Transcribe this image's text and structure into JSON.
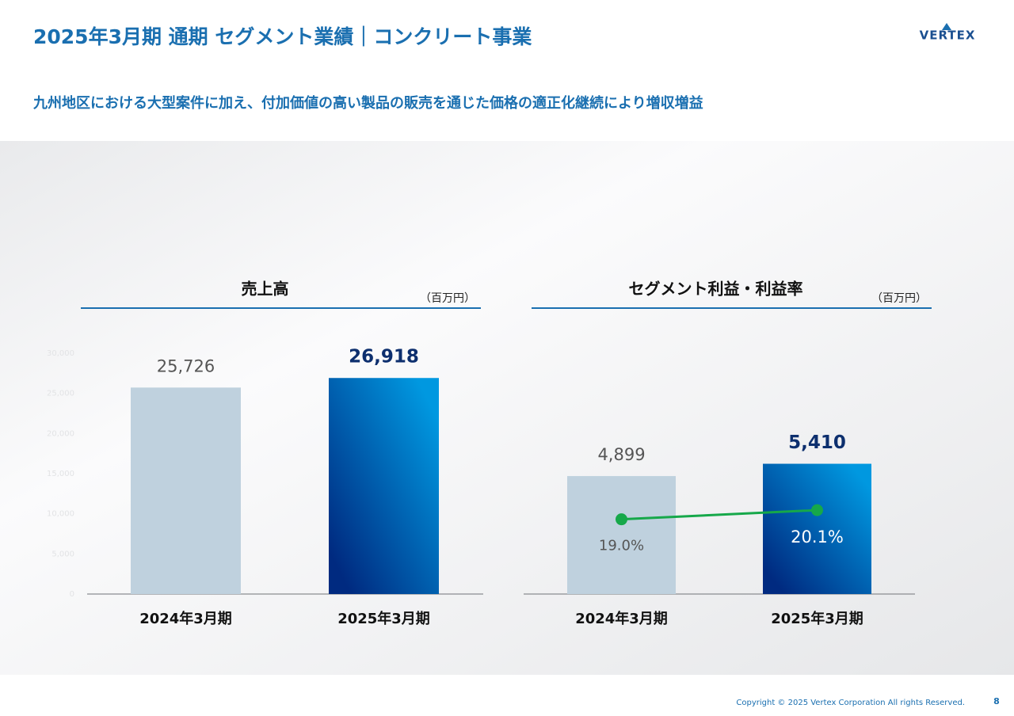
{
  "header": {
    "title": "2025年3月期 通期 セグメント業績｜コンクリート事業",
    "subtitle": "九州地区における大型案件に加え、付加価値の高い製品の販売を通じた価格の適正化継続により増収増益",
    "logo": "VERTEX"
  },
  "chart_data": [
    {
      "type": "bar",
      "title": "売上高",
      "unit": "（百万円）",
      "categories": [
        "2024年3月期",
        "2025年3月期"
      ],
      "series": [
        {
          "colors": [
            "#bfd1de",
            "#0098e0"
          ],
          "values": [
            25726,
            26918
          ],
          "value_labels": [
            "25,726",
            "26,918"
          ]
        }
      ],
      "ylim": [
        0,
        30000
      ],
      "yticks": [
        0,
        {
          "value": 5000,
          "label": "5,000"
        },
        {
          "value": 10000,
          "label": "10,000"
        },
        {
          "value": 15000,
          "label": "15,000"
        },
        {
          "value": 20000,
          "label": "20,000"
        },
        {
          "value": 25000,
          "label": "25,000"
        },
        {
          "value": 30000,
          "label": "30,000"
        }
      ]
    },
    {
      "type": "bar",
      "title": "セグメント利益・利益率",
      "unit": "（百万円）",
      "categories": [
        "2024年3月期",
        "2025年3月期"
      ],
      "series": [
        {
          "colors": [
            "#bfd1de",
            "#0098e0"
          ],
          "values": [
            4899,
            5410
          ],
          "value_labels": [
            "4,899",
            "5,410"
          ]
        },
        {
          "type": "line",
          "axis": "y2",
          "color": "#16a84a",
          "values": [
            19.0,
            20.1
          ],
          "value_labels": [
            "19.0%",
            "20.1%"
          ]
        }
      ],
      "ylim": [
        0,
        10000
      ],
      "y2lim": [
        10,
        39
      ]
    }
  ],
  "footer": {
    "copyright": "Copyright © 2025 Vertex Corporation All rights Reserved.",
    "page": 8
  }
}
